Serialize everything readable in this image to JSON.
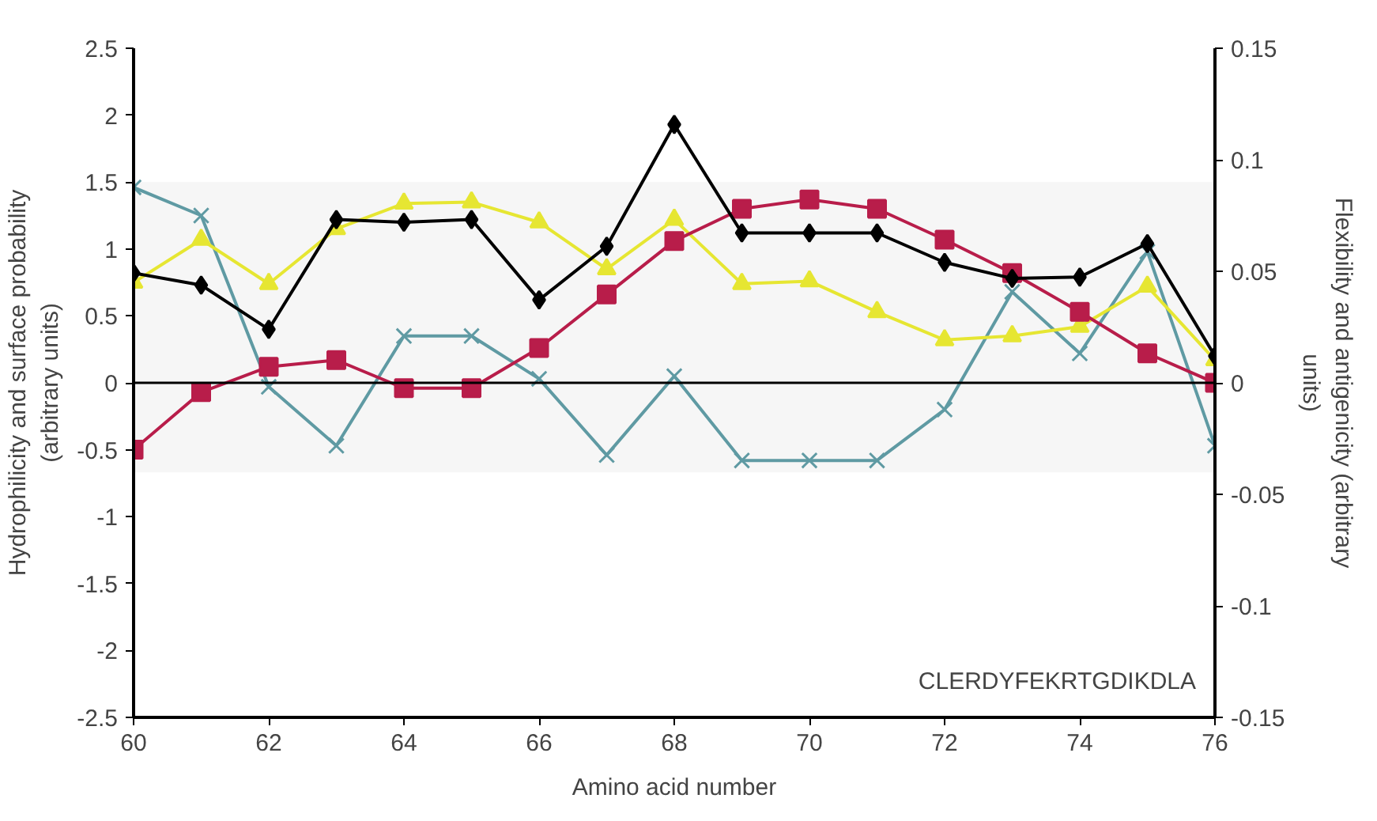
{
  "chart_data": {
    "type": "line",
    "xlabel": "Amino acid number",
    "ylabel": "Hydrophilicity and surface probability\n(arbitrary units)",
    "y2label": "Flexibility and antigenicity (arbitrary\nunits)",
    "x": [
      60,
      61,
      62,
      63,
      64,
      65,
      66,
      67,
      68,
      69,
      70,
      71,
      72,
      73,
      74,
      75,
      76
    ],
    "series": [
      {
        "color": "#000000",
        "marker": "diamond",
        "values": [
          0.82,
          0.73,
          0.4,
          1.22,
          1.2,
          1.22,
          0.62,
          1.02,
          1.93,
          1.12,
          1.12,
          1.12,
          0.9,
          0.78,
          0.79,
          1.04,
          0.2
        ]
      },
      {
        "color": "#b81d4a",
        "marker": "square",
        "values": [
          -0.5,
          -0.07,
          0.12,
          0.17,
          -0.04,
          -0.04,
          0.26,
          0.66,
          1.06,
          1.3,
          1.37,
          1.3,
          1.07,
          0.82,
          0.53,
          0.22,
          0
        ]
      },
      {
        "color": "#e6e632",
        "marker": "triangle",
        "values": [
          0.75,
          1.07,
          0.74,
          1.15,
          1.34,
          1.35,
          1.2,
          0.85,
          1.22,
          0.74,
          0.76,
          0.53,
          0.32,
          0.35,
          0.42,
          0.72,
          0.17
        ]
      },
      {
        "color": "#5f9aa3",
        "marker": "x",
        "values": [
          1.46,
          1.25,
          -0.03,
          -0.47,
          0.35,
          0.35,
          0.03,
          -0.54,
          0.05,
          -0.58,
          -0.58,
          -0.58,
          -0.2,
          0.68,
          0.22,
          0.98,
          -0.47
        ]
      }
    ],
    "xlim": [
      60,
      76
    ],
    "xticks": [
      60,
      62,
      64,
      66,
      68,
      70,
      72,
      74,
      76
    ],
    "ylim": [
      -2.5,
      2.5
    ],
    "yticks": [
      -2.5,
      -2,
      -1.5,
      -1,
      -0.5,
      0,
      0.5,
      1,
      1.5,
      2,
      2.5
    ],
    "y2lim": [
      -0.15,
      0.15
    ],
    "y2ticks": [
      -0.15,
      -0.1,
      -0.05,
      0,
      0.05,
      0.1,
      0.15
    ],
    "ref_lines": [
      {
        "axis": "y",
        "value": 0,
        "color": "#000000"
      }
    ],
    "bands": [
      {
        "axis": "y",
        "from": -0.67,
        "to": 1.5,
        "color": "#f6f6f6"
      }
    ],
    "annotations": [
      "CLERDYFEKRTGDIKDLA"
    ],
    "grid": false
  }
}
